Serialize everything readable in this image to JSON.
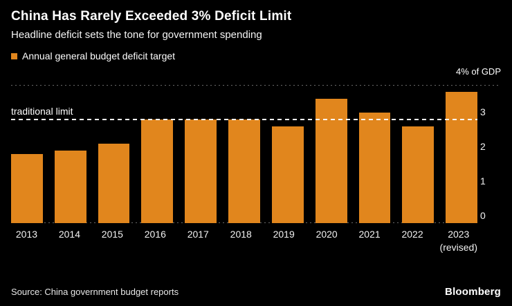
{
  "header": {
    "title": "China Has Rarely Exceeded 3% Deficit Limit",
    "subtitle": "Headline deficit sets the tone for government spending"
  },
  "legend": {
    "label": "Annual general budget deficit target"
  },
  "axis": {
    "unit_label": "4% of GDP",
    "ticks": [
      3,
      2,
      1,
      0
    ]
  },
  "footer": {
    "source": "Source: China government budget reports",
    "brand": "Bloomberg"
  },
  "colors": {
    "bar": "#E1861D",
    "background": "#000000",
    "grid": "#6A6A6A",
    "reference": "#FFFFFF"
  },
  "chart_data": {
    "type": "bar",
    "title": "China Has Rarely Exceeded 3% Deficit Limit",
    "subtitle": "Headline deficit sets the tone for government spending",
    "series_name": "Annual general budget deficit target",
    "categories": [
      "2013",
      "2014",
      "2015",
      "2016",
      "2017",
      "2018",
      "2019",
      "2020",
      "2021",
      "2022",
      "2023"
    ],
    "category_notes": [
      "",
      "",
      "",
      "",
      "",
      "",
      "",
      "",
      "",
      "",
      "(revised)"
    ],
    "values": [
      2.0,
      2.1,
      2.3,
      3.0,
      3.0,
      3.0,
      2.8,
      3.6,
      3.2,
      2.8,
      3.8
    ],
    "ylabel": "% of GDP",
    "ylim": [
      0,
      4
    ],
    "yticks": [
      0,
      1,
      2,
      3
    ],
    "grid": "dotted horizontal lines at 0 and 4, ticks on right side",
    "legend_position": "top-left",
    "reference_line": {
      "value": 3,
      "label": "traditional limit",
      "style": "dashed",
      "color": "#FFFFFF"
    },
    "source": "Source: China government budget reports"
  }
}
